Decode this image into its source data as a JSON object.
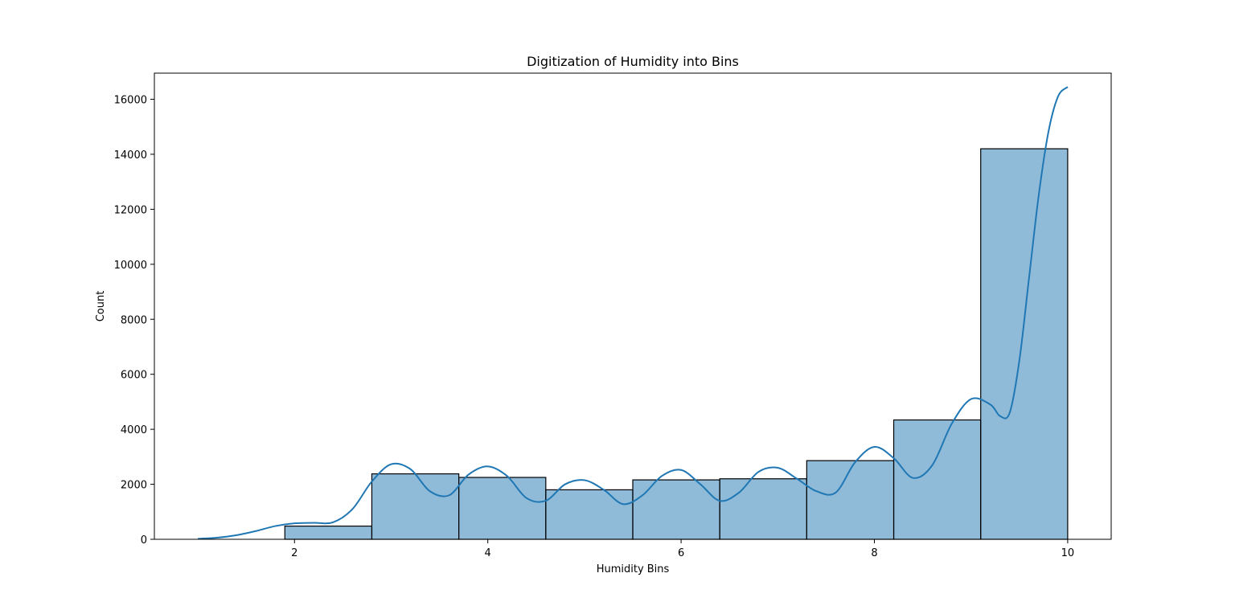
{
  "chart_data": {
    "type": "bar",
    "title": "Digitization of Humidity into Bins",
    "xlabel": "Humidity Bins",
    "ylabel": "Count",
    "xlim": [
      0.55,
      10.45
    ],
    "ylim": [
      0,
      16950
    ],
    "xticks": [
      2,
      4,
      6,
      8,
      10
    ],
    "yticks": [
      0,
      2000,
      4000,
      6000,
      8000,
      10000,
      12000,
      14000,
      16000
    ],
    "grid": false,
    "bar_color": "#1f77b4",
    "bar_opacity": 0.5,
    "edge_color": "#000000",
    "kde_color": "#1f77b4",
    "bins": [
      {
        "x0": 1.9,
        "x1": 2.8,
        "count": 480
      },
      {
        "x0": 2.8,
        "x1": 3.7,
        "count": 2380
      },
      {
        "x0": 3.7,
        "x1": 4.6,
        "count": 2250
      },
      {
        "x0": 4.6,
        "x1": 5.5,
        "count": 1800
      },
      {
        "x0": 5.5,
        "x1": 6.4,
        "count": 2160
      },
      {
        "x0": 6.4,
        "x1": 7.3,
        "count": 2200
      },
      {
        "x0": 7.3,
        "x1": 8.2,
        "count": 2860
      },
      {
        "x0": 8.2,
        "x1": 9.1,
        "count": 4340
      },
      {
        "x0": 9.1,
        "x1": 10.0,
        "count": 14200
      }
    ],
    "kde": {
      "x": [
        1.0,
        1.2,
        1.4,
        1.6,
        1.8,
        2.0,
        2.2,
        2.4,
        2.6,
        2.8,
        3.0,
        3.2,
        3.4,
        3.6,
        3.8,
        4.0,
        4.2,
        4.4,
        4.6,
        4.8,
        5.0,
        5.2,
        5.4,
        5.6,
        5.8,
        6.0,
        6.2,
        6.4,
        6.6,
        6.8,
        7.0,
        7.2,
        7.4,
        7.6,
        7.8,
        8.0,
        8.2,
        8.4,
        8.6,
        8.8,
        9.0,
        9.2,
        9.3,
        9.4,
        9.5,
        9.6,
        9.7,
        9.8,
        9.9,
        10.0
      ],
      "y": [
        20,
        60,
        150,
        300,
        480,
        580,
        600,
        620,
        1100,
        2100,
        2730,
        2550,
        1750,
        1600,
        2350,
        2650,
        2300,
        1500,
        1400,
        2000,
        2150,
        1800,
        1280,
        1600,
        2300,
        2520,
        2000,
        1400,
        1700,
        2450,
        2600,
        2200,
        1750,
        1700,
        2800,
        3360,
        2950,
        2230,
        2700,
        4200,
        5100,
        4900,
        4480,
        4600,
        6500,
        9500,
        12500,
        14800,
        16100,
        16450
      ]
    }
  }
}
